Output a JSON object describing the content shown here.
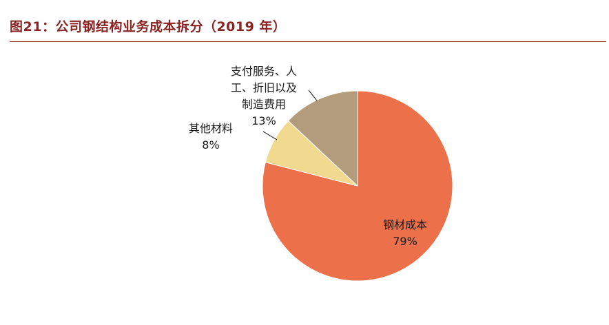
{
  "figure": {
    "title": "图21：公司钢结构业务成本拆分（2019 年）"
  },
  "chart_data": {
    "type": "pie",
    "title": "图21：公司钢结构业务成本拆分（2019 年）",
    "slices": [
      {
        "label": "钢材成本",
        "value": 79,
        "value_label": "79%",
        "color": "#EC7049"
      },
      {
        "label": "其他材料",
        "value": 8,
        "value_label": "8%",
        "color": "#F2D990"
      },
      {
        "label": "支付服务、人工、折旧以及制造费用",
        "value": 13,
        "value_label": "13%",
        "color": "#B39C7C"
      }
    ],
    "start_angle": "12 o'clock",
    "direction": "clockwise",
    "legend": "none (direct labels)"
  }
}
